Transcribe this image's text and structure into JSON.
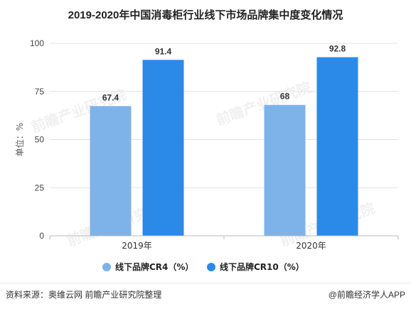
{
  "chart_data": {
    "type": "bar",
    "title": "2019-2020年中国消毒柜行业线下市场品牌集中度变化情况",
    "ylabel": "单位：%",
    "xlabel": "",
    "ylim": [
      0,
      100
    ],
    "yticks": [
      0,
      25,
      50,
      75,
      100
    ],
    "categories": [
      "2019年",
      "2020年"
    ],
    "series": [
      {
        "name": "线下品牌CR4（%）",
        "color": "#7eb3ea",
        "values": [
          67.4,
          68
        ],
        "labels": [
          "67.4",
          "68"
        ]
      },
      {
        "name": "线下品牌CR10（%）",
        "color": "#2b8ae8",
        "values": [
          91.4,
          92.8
        ],
        "labels": [
          "91.4",
          "92.8"
        ]
      }
    ],
    "legend": "bottom",
    "grid": true
  },
  "footer": {
    "source": "资料来源：奥维云网 前瞻产业研究院整理",
    "brand": "@前瞻经济学人APP"
  },
  "watermark": "前瞻产业研究院"
}
